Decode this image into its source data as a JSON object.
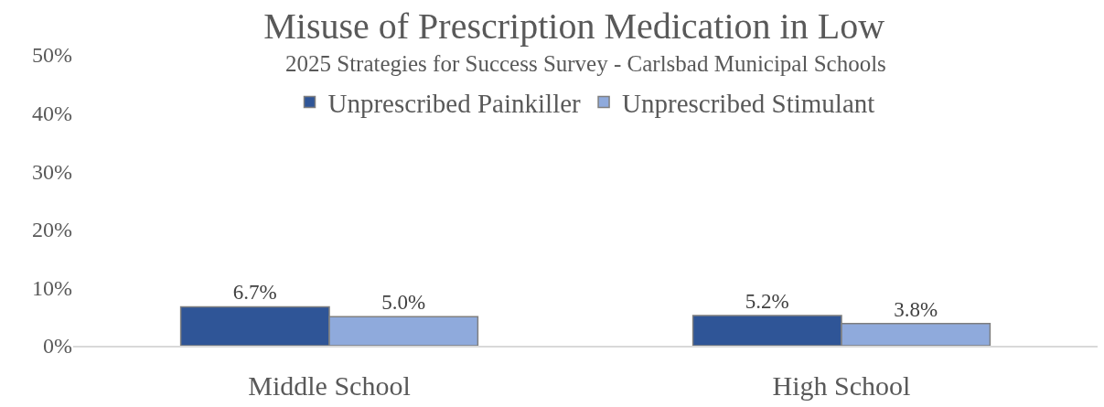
{
  "chart_data": {
    "type": "bar",
    "title": "Misuse of Prescription Medication in Low",
    "subtitle": "2025 Strategies for Success Survey - Carlsbad Municipal Schools",
    "categories": [
      "Middle School",
      "High School"
    ],
    "series": [
      {
        "name": "Unprescribed Painkiller",
        "color": "#2f5597",
        "values": [
          6.7,
          5.2
        ],
        "value_labels": [
          "6.7%",
          "5.2%"
        ]
      },
      {
        "name": "Unprescribed Stimulant",
        "color": "#8faadc",
        "values": [
          5.0,
          3.8
        ],
        "value_labels": [
          "5.0%",
          "3.8%"
        ]
      }
    ],
    "ylim": [
      0,
      50
    ],
    "yticks": [
      {
        "value": 0,
        "label": "0%"
      },
      {
        "value": 10,
        "label": "10%"
      },
      {
        "value": 20,
        "label": "20%"
      },
      {
        "value": 30,
        "label": "30%"
      },
      {
        "value": 40,
        "label": "40%"
      },
      {
        "value": 50,
        "label": "50%"
      }
    ],
    "grid": false,
    "legend": "top"
  }
}
